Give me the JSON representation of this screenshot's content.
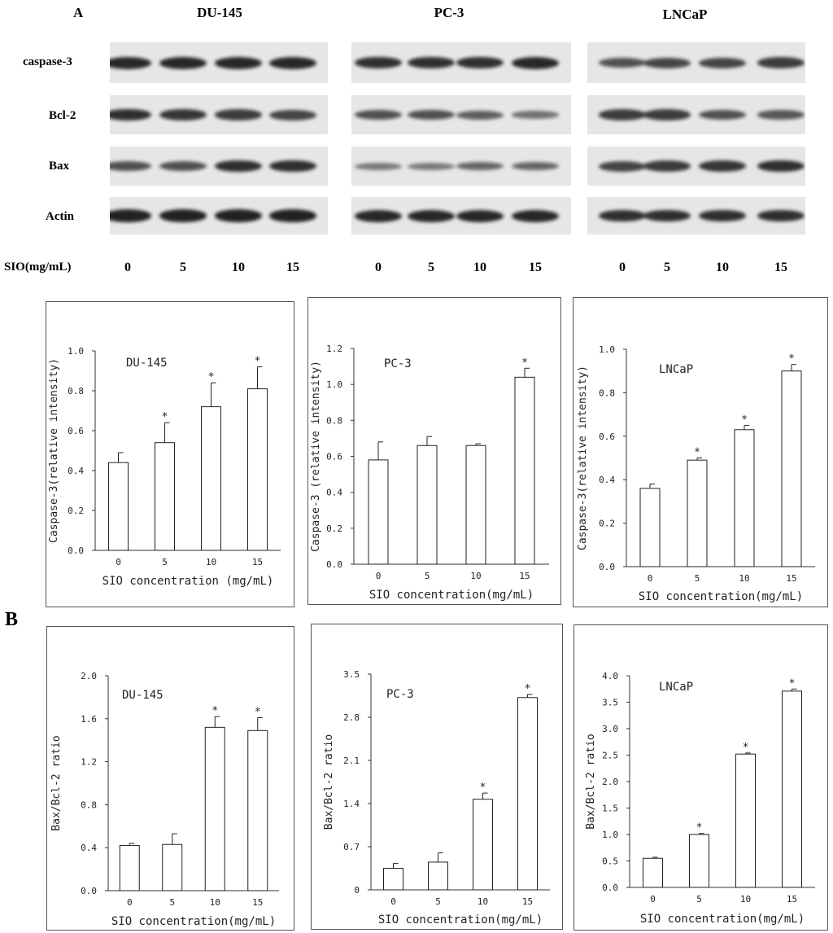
{
  "figure": {
    "panel_a_label": "A",
    "panel_b_label": "B",
    "blot": {
      "cell_lines": [
        "DU-145",
        "PC-3",
        "LNCaP"
      ],
      "row_labels": [
        "caspase-3",
        "Bcl-2",
        "Bax",
        "Actin"
      ],
      "dose_label": "SIO(mg/mL)",
      "doses": [
        "0",
        "5",
        "10",
        "15"
      ],
      "band_intensity": [
        [
          [
            0.9,
            0.9,
            0.9,
            0.9
          ],
          [
            0.85,
            0.8,
            0.75,
            0.7
          ],
          [
            0.6,
            0.6,
            0.85,
            0.85
          ],
          [
            0.95,
            0.95,
            0.95,
            0.95
          ]
        ],
        [
          [
            0.85,
            0.85,
            0.85,
            0.9
          ],
          [
            0.6,
            0.6,
            0.5,
            0.35
          ],
          [
            0.3,
            0.3,
            0.45,
            0.45
          ],
          [
            0.9,
            0.9,
            0.9,
            0.9
          ]
        ],
        [
          [
            0.6,
            0.7,
            0.7,
            0.75
          ],
          [
            0.75,
            0.75,
            0.6,
            0.55
          ],
          [
            0.7,
            0.75,
            0.8,
            0.85
          ],
          [
            0.85,
            0.85,
            0.85,
            0.85
          ]
        ]
      ]
    }
  },
  "chart_data": [
    {
      "type": "bar",
      "title": "DU-145",
      "ylabel": "Caspase-3(relative intensity)",
      "xlabel": "SIO concentration (mg/mL)",
      "categories": [
        "0",
        "5",
        "10",
        "15"
      ],
      "values": [
        0.44,
        0.54,
        0.72,
        0.81
      ],
      "errors": [
        0.05,
        0.1,
        0.12,
        0.11
      ],
      "significant": [
        false,
        true,
        true,
        true
      ],
      "ylim": [
        0,
        1.0
      ],
      "yticks": [
        "0.0",
        "0.2",
        "0.4",
        "0.6",
        "0.8",
        "1.0"
      ]
    },
    {
      "type": "bar",
      "title": "PC-3",
      "ylabel": "Caspase-3 (relative intensity)",
      "xlabel": "SIO concentration(mg/mL)",
      "categories": [
        "0",
        "5",
        "10",
        "15"
      ],
      "values": [
        0.58,
        0.66,
        0.66,
        1.04
      ],
      "errors": [
        0.1,
        0.05,
        0.01,
        0.05
      ],
      "significant": [
        false,
        false,
        false,
        true
      ],
      "ylim": [
        0,
        1.2
      ],
      "yticks": [
        "0.0",
        "0.2",
        "0.4",
        "0.6",
        "0.8",
        "1.0",
        "1.2"
      ]
    },
    {
      "type": "bar",
      "title": "LNCaP",
      "ylabel": "Caspase-3(relative intensity)",
      "xlabel": "SIO concentration(mg/mL)",
      "categories": [
        "0",
        "5",
        "10",
        "15"
      ],
      "values": [
        0.36,
        0.49,
        0.63,
        0.9
      ],
      "errors": [
        0.02,
        0.01,
        0.02,
        0.03
      ],
      "significant": [
        false,
        true,
        true,
        true
      ],
      "ylim": [
        0,
        1.0
      ],
      "yticks": [
        "0.0",
        "0.2",
        "0.4",
        "0.6",
        "0.8",
        "1.0"
      ]
    },
    {
      "type": "bar",
      "title": "DU-145",
      "ylabel": "Bax/Bcl-2 ratio",
      "xlabel": "SIO concentration(mg/mL)",
      "categories": [
        "0",
        "5",
        "10",
        "15"
      ],
      "values": [
        0.42,
        0.43,
        1.52,
        1.49
      ],
      "errors": [
        0.02,
        0.1,
        0.1,
        0.12
      ],
      "significant": [
        false,
        false,
        true,
        true
      ],
      "ylim": [
        0,
        2.0
      ],
      "yticks": [
        "0.0",
        "0.4",
        "0.8",
        "1.2",
        "1.6",
        "2.0"
      ]
    },
    {
      "type": "bar",
      "title": "PC-3",
      "ylabel": "Bax/Bcl-2 ratio",
      "xlabel": "SIO concentration(mg/mL)",
      "categories": [
        "0",
        "5",
        "10",
        "15"
      ],
      "values": [
        0.35,
        0.45,
        1.47,
        3.12
      ],
      "errors": [
        0.08,
        0.15,
        0.1,
        0.05
      ],
      "significant": [
        false,
        false,
        true,
        true
      ],
      "ylim": [
        0,
        3.5
      ],
      "yticks": [
        "0",
        "0.7",
        "1.4",
        "2.1",
        "2.8",
        "3.5"
      ]
    },
    {
      "type": "bar",
      "title": "LNCaP",
      "ylabel": "Bax/Bcl-2 ratio",
      "xlabel": "SIO concentration(mg/mL)",
      "categories": [
        "0",
        "5",
        "10",
        "15"
      ],
      "values": [
        0.55,
        1.0,
        2.52,
        3.71
      ],
      "errors": [
        0.02,
        0.02,
        0.02,
        0.04
      ],
      "significant": [
        false,
        true,
        true,
        true
      ],
      "ylim": [
        0,
        4.0
      ],
      "yticks": [
        "0.0",
        "0.5",
        "1.0",
        "1.5",
        "2.0",
        "2.5",
        "3.0",
        "3.5",
        "4.0"
      ]
    }
  ]
}
